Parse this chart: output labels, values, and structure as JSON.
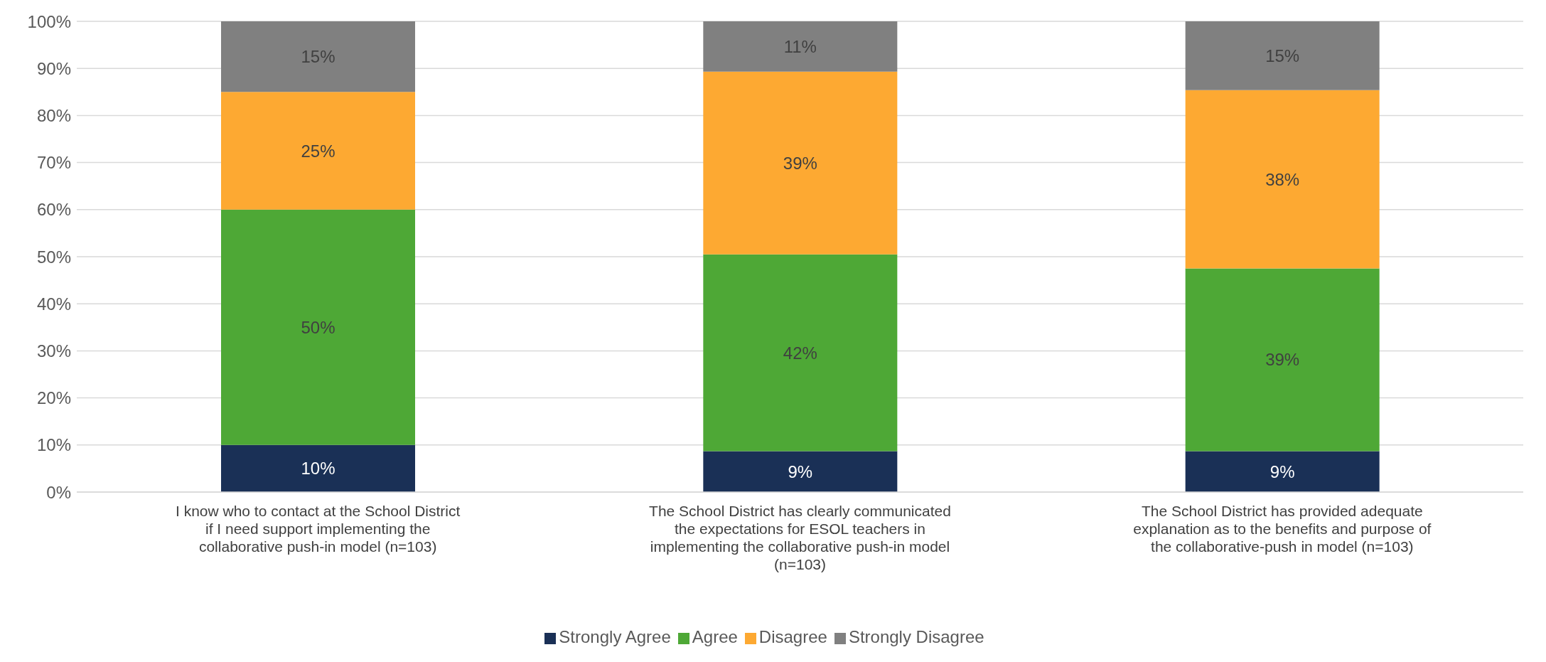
{
  "chart_data": {
    "type": "bar",
    "stacked": true,
    "categories": [
      "I know who to contact at the School District if I need support implementing the collaborative push-in model (n=103)",
      "The School District has clearly communicated the expectations for ESOL teachers in implementing the collaborative push-in model (n=103)",
      "The School District has provided adequate explanation as to the benefits and purpose of the collaborative-push in model (n=103)"
    ],
    "series": [
      {
        "name": "Strongly Agree",
        "color": "#1a3056",
        "values": [
          10,
          8.7,
          8.7
        ],
        "value_labels": [
          "10%",
          "9%",
          "9%"
        ]
      },
      {
        "name": "Agree",
        "color": "#4ea836",
        "values": [
          50,
          41.8,
          38.8
        ],
        "value_labels": [
          "50%",
          "42%",
          "39%"
        ]
      },
      {
        "name": "Disagree",
        "color": "#fda932",
        "values": [
          25,
          38.8,
          37.9
        ],
        "value_labels": [
          "25%",
          "39%",
          "38%"
        ]
      },
      {
        "name": "Strongly Disagree",
        "color": "#808080",
        "values": [
          15,
          10.7,
          14.6
        ],
        "value_labels": [
          "15%",
          "11%",
          "15%"
        ]
      }
    ],
    "ylim": [
      0,
      100
    ],
    "yticks": [
      {
        "value": 0,
        "label": "0%"
      },
      {
        "value": 10,
        "label": "10%"
      },
      {
        "value": 20,
        "label": "20%"
      },
      {
        "value": 30,
        "label": "30%"
      },
      {
        "value": 40,
        "label": "40%"
      },
      {
        "value": 50,
        "label": "50%"
      },
      {
        "value": 60,
        "label": "60%"
      },
      {
        "value": 70,
        "label": "70%"
      },
      {
        "value": 80,
        "label": "80%"
      },
      {
        "value": 90,
        "label": "90%"
      },
      {
        "value": 100,
        "label": "100%"
      }
    ],
    "grid": "y",
    "legend": "bottom"
  }
}
